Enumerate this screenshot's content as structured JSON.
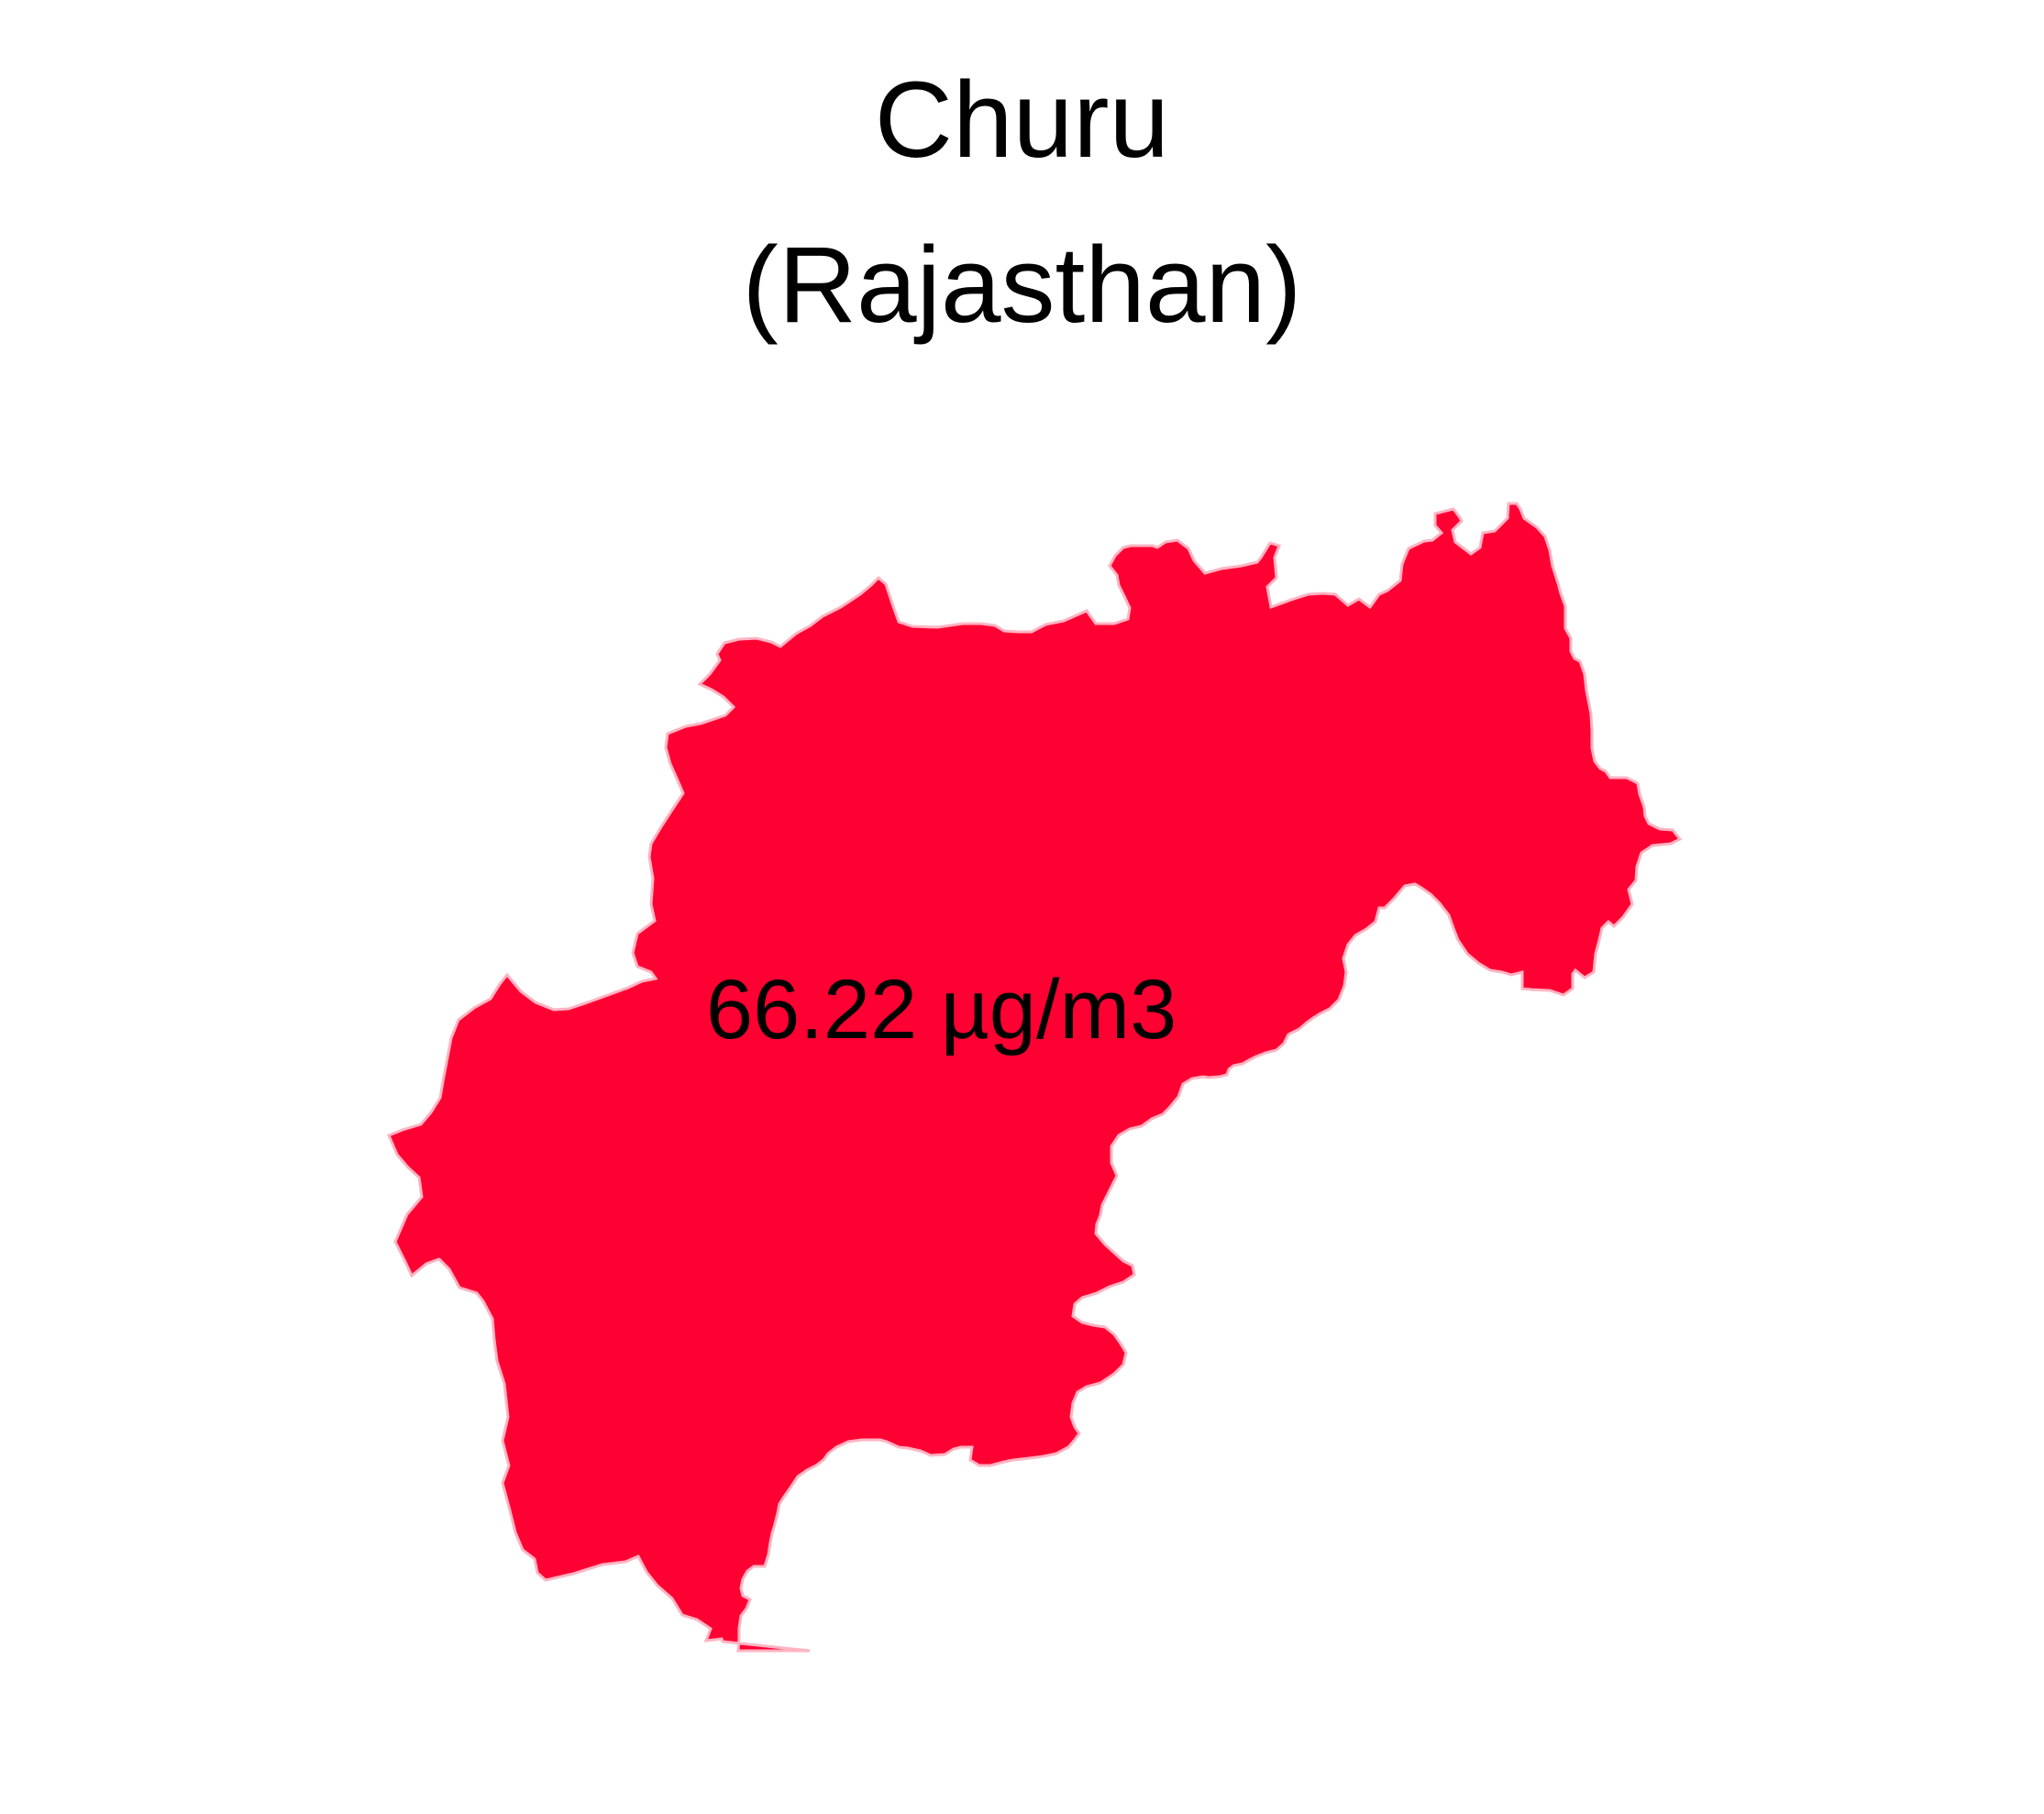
{
  "map": {
    "title": {
      "district": "Churu",
      "state": "(Rajasthan)"
    },
    "region": {
      "name": "Churu",
      "value_label": "66.22 µg/m3",
      "fill_color": "#ff0033",
      "stroke_color": "#ffb3c1"
    },
    "background_color": "#ffffff"
  }
}
